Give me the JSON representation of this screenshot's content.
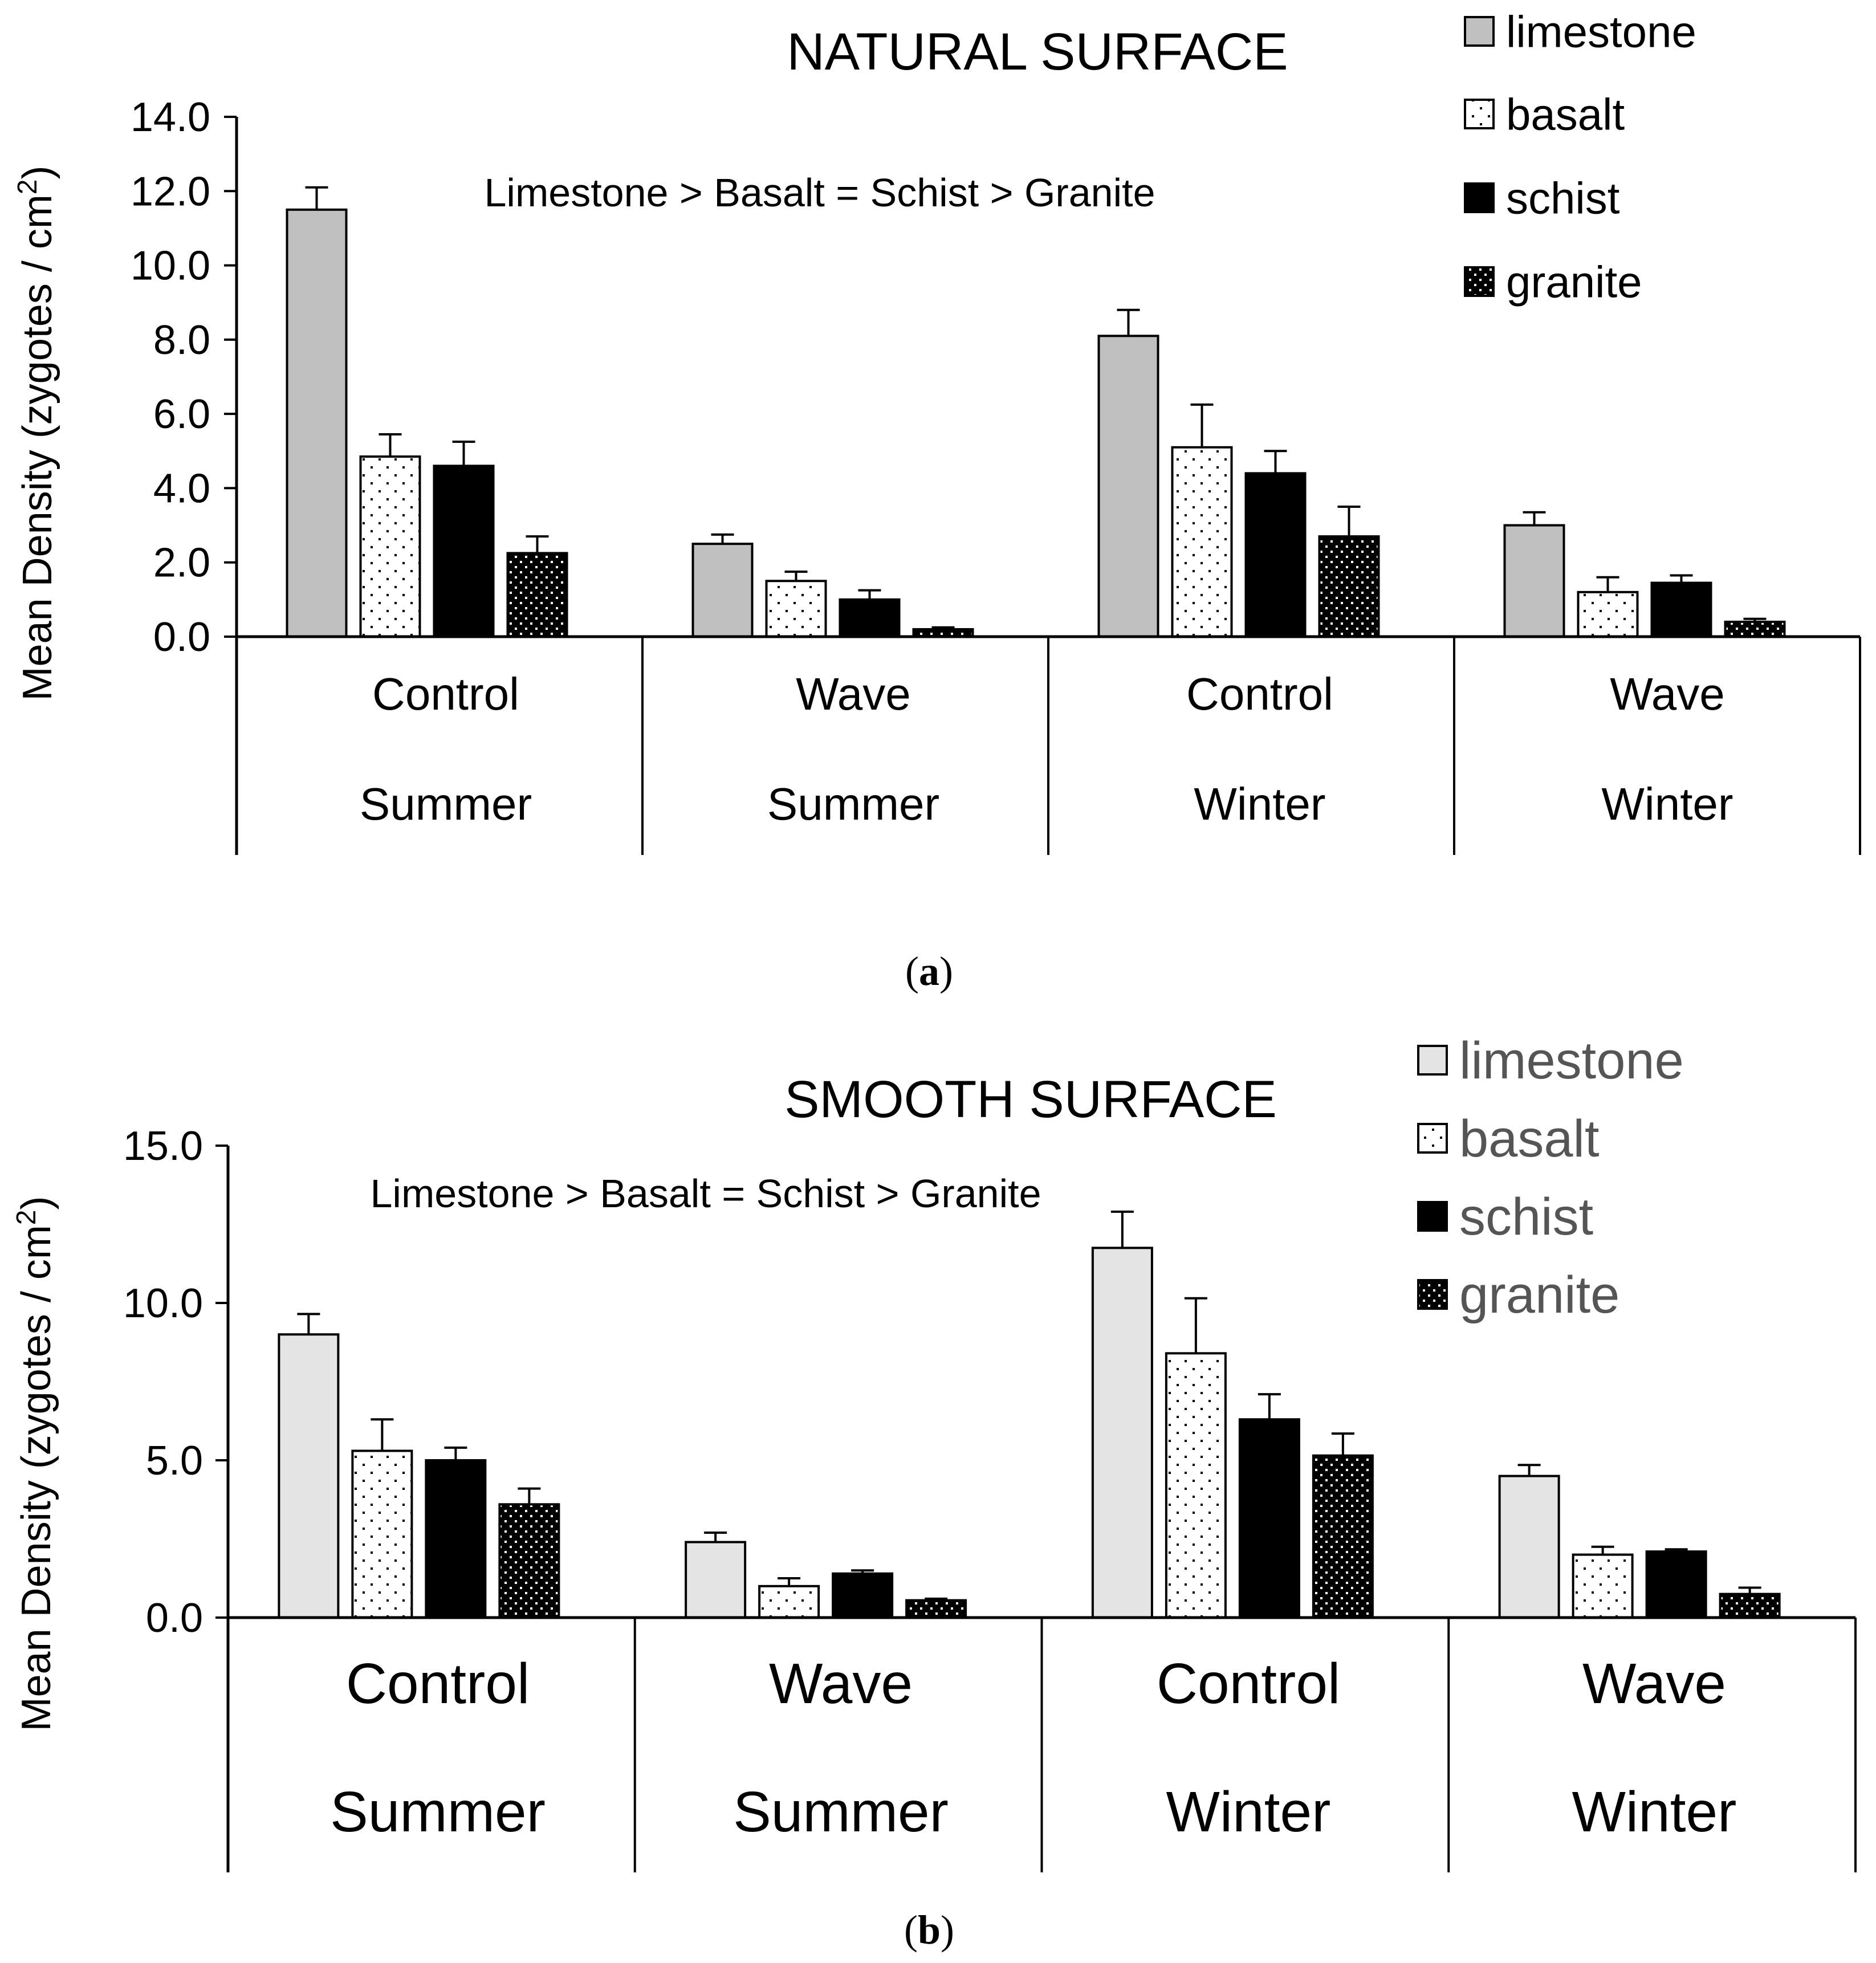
{
  "panels": [
    {
      "panel_label_open": "(",
      "panel_label_letter": "a",
      "panel_label_close": ")",
      "annotation": "Limestone > Basalt = Schist > Granite"
    },
    {
      "panel_label_open": "(",
      "panel_label_letter": "b",
      "panel_label_close": ")",
      "annotation": "Limestone > Basalt = Schist > Granite"
    }
  ],
  "chart_data": [
    {
      "type": "bar",
      "title": "NATURAL SURFACE",
      "ylabel": "Mean Density (zygotes / cm",
      "ylabel_sup": "2",
      "ylabel_end": ")",
      "ylim": [
        0,
        14
      ],
      "yticks": [
        "0.0",
        "2.0",
        "4.0",
        "6.0",
        "8.0",
        "10.0",
        "12.0",
        "14.0"
      ],
      "categories": [
        {
          "treatment": "Control",
          "season": "Summer"
        },
        {
          "treatment": "Wave",
          "season": "Summer"
        },
        {
          "treatment": "Control",
          "season": "Winter"
        },
        {
          "treatment": "Wave",
          "season": "Winter"
        }
      ],
      "series": [
        {
          "name": "limestone",
          "color": "#c0c0c0",
          "pattern": "solid",
          "values": [
            11.5,
            2.5,
            8.1,
            3.0
          ],
          "errors": [
            0.6,
            0.25,
            0.7,
            0.35
          ]
        },
        {
          "name": "basalt",
          "color": "#ffffff",
          "pattern": "dots-black",
          "values": [
            4.85,
            1.5,
            5.1,
            1.2
          ],
          "errors": [
            0.6,
            0.25,
            1.15,
            0.4
          ]
        },
        {
          "name": "schist",
          "color": "#000000",
          "pattern": "solid",
          "values": [
            4.6,
            1.0,
            4.4,
            1.45
          ],
          "errors": [
            0.65,
            0.25,
            0.6,
            0.2
          ]
        },
        {
          "name": "granite",
          "color": "#000000",
          "pattern": "dots-white",
          "values": [
            2.25,
            0.2,
            2.7,
            0.4
          ],
          "errors": [
            0.45,
            0.05,
            0.8,
            0.08
          ]
        }
      ],
      "legend_position": "top-right"
    },
    {
      "type": "bar",
      "title": "SMOOTH SURFACE",
      "ylabel": "Mean Density (zygotes / cm",
      "ylabel_sup": "2",
      "ylabel_end": ")",
      "ylim": [
        0,
        15
      ],
      "yticks": [
        "0.0",
        "5.0",
        "10.0",
        "15.0"
      ],
      "categories": [
        {
          "treatment": "Control",
          "season": "Summer"
        },
        {
          "treatment": "Wave",
          "season": "Summer"
        },
        {
          "treatment": "Control",
          "season": "Winter"
        },
        {
          "treatment": "Wave",
          "season": "Winter"
        }
      ],
      "series": [
        {
          "name": "limestone",
          "color": "#e4e4e4",
          "pattern": "solid",
          "values": [
            9.0,
            2.4,
            11.75,
            4.5
          ],
          "errors": [
            0.65,
            0.3,
            1.15,
            0.35
          ]
        },
        {
          "name": "basalt",
          "color": "#ffffff",
          "pattern": "dots-black",
          "values": [
            5.3,
            1.0,
            8.4,
            2.0
          ],
          "errors": [
            1.0,
            0.25,
            1.75,
            0.25
          ]
        },
        {
          "name": "schist",
          "color": "#000000",
          "pattern": "solid",
          "values": [
            5.0,
            1.4,
            6.3,
            2.1
          ],
          "errors": [
            0.4,
            0.1,
            0.8,
            0.07
          ]
        },
        {
          "name": "granite",
          "color": "#000000",
          "pattern": "dots-white",
          "values": [
            3.6,
            0.55,
            5.15,
            0.75
          ],
          "errors": [
            0.5,
            0.05,
            0.7,
            0.2
          ]
        }
      ],
      "legend_position": "top-right"
    }
  ]
}
